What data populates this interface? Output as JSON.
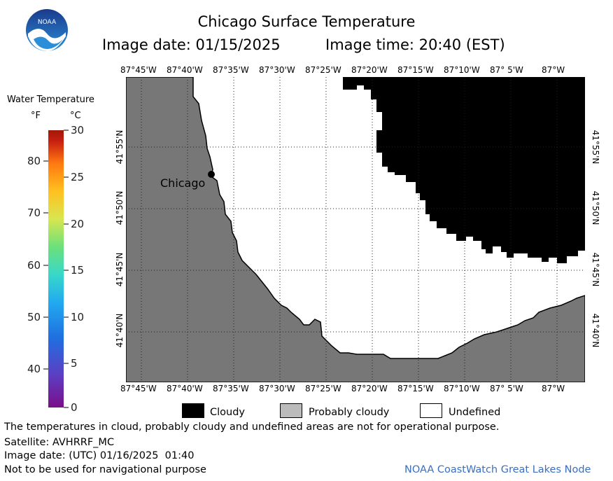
{
  "header": {
    "title": "Chicago Surface Temperature",
    "image_date_label": "Image date: 01/15/2025",
    "image_time_label": "Image time: 20:40 (EST)",
    "logo_text": "NOAA"
  },
  "legend": {
    "title": "Water Temperature",
    "unit_f": "°F",
    "unit_c": "°C",
    "f_ticks": [
      "80",
      "70",
      "60",
      "50",
      "40"
    ],
    "c_ticks": [
      "30",
      "25",
      "20",
      "15",
      "10",
      "5",
      "0"
    ]
  },
  "map": {
    "lon_ticks": [
      "87°45'W",
      "87°40'W",
      "87°35'W",
      "87°30'W",
      "87°25'W",
      "87°20'W",
      "87°15'W",
      "87°10'W",
      "87° 5'W",
      "87°W"
    ],
    "lat_ticks": [
      "41°55'N",
      "41°50'N",
      "41°45'N",
      "41°40'N"
    ],
    "city_label": "Chicago",
    "colors": {
      "land": "#777777",
      "cloudy": "#000000",
      "undefined": "#ffffff",
      "probably_cloudy": "#bbbbbb"
    }
  },
  "key": {
    "cloudy": "Cloudy",
    "probably_cloudy": "Probably cloudy",
    "undefined": "Undefined"
  },
  "footer": {
    "disclaimer": "The temperatures in cloud, probably cloudy and undefined areas are not for operational purpose.",
    "satellite": "Satellite: AVHRRF_MC",
    "utc_date": "Image date: (UTC) 01/16/2025  01:40",
    "nav_warning": "Not to be used for navigational purpose",
    "credit": "NOAA CoastWatch Great Lakes Node"
  }
}
